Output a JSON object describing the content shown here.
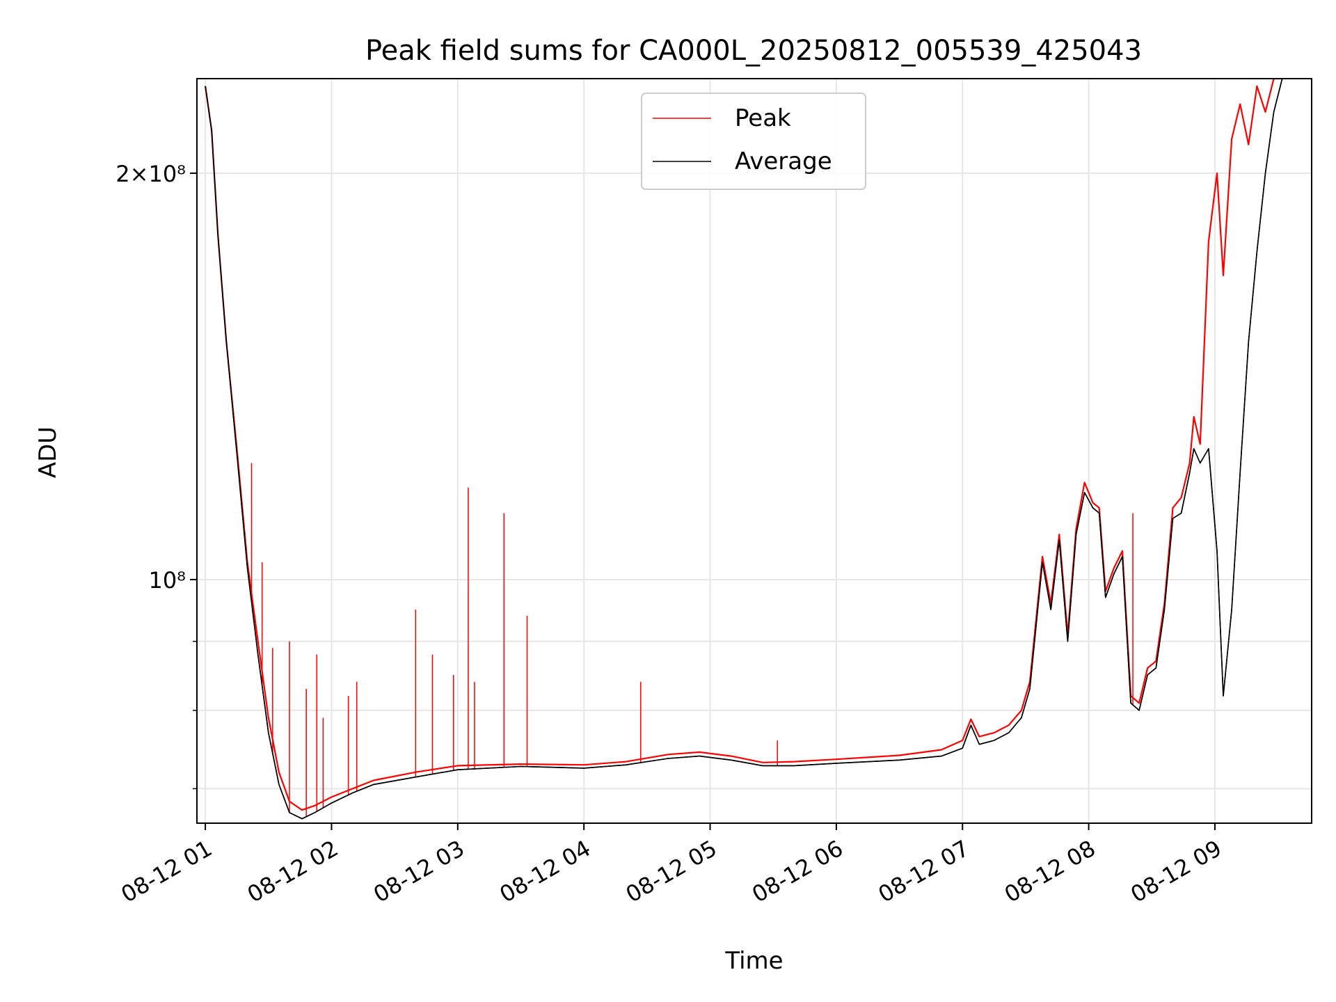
{
  "chart_data": {
    "type": "line",
    "title": "Peak field sums for CA000L_20250812_005539_425043",
    "xlabel": "Time",
    "ylabel": "ADU",
    "y_scale": "log",
    "ylim": [
      66000000,
      235000000
    ],
    "xlim": [
      "2025-08-12 00:56",
      "2025-08-12 09:46"
    ],
    "grid": true,
    "legend_position": "top-center",
    "x_ticks": [
      "08-12 01",
      "08-12 02",
      "08-12 03",
      "08-12 04",
      "08-12 05",
      "08-12 06",
      "08-12 07",
      "08-12 08",
      "08-12 09"
    ],
    "y_ticks": [
      {
        "value": 100000000,
        "label": "10⁸"
      },
      {
        "value": 200000000,
        "label": "2×10⁸"
      }
    ],
    "series": [
      {
        "name": "Peak",
        "color": "#ff0000",
        "spikes": [
          {
            "x": "2025-08-12 01:22",
            "y": 122000000
          },
          {
            "x": "2025-08-12 01:27",
            "y": 103000000
          },
          {
            "x": "2025-08-12 01:32",
            "y": 89000000
          },
          {
            "x": "2025-08-12 01:40",
            "y": 90000000
          },
          {
            "x": "2025-08-12 01:48",
            "y": 83000000
          },
          {
            "x": "2025-08-12 01:53",
            "y": 88000000
          },
          {
            "x": "2025-08-12 01:56",
            "y": 79000000
          },
          {
            "x": "2025-08-12 02:08",
            "y": 82000000
          },
          {
            "x": "2025-08-12 02:12",
            "y": 84000000
          },
          {
            "x": "2025-08-12 02:40",
            "y": 95000000
          },
          {
            "x": "2025-08-12 02:48",
            "y": 88000000
          },
          {
            "x": "2025-08-12 02:58",
            "y": 85000000
          },
          {
            "x": "2025-08-12 03:05",
            "y": 117000000
          },
          {
            "x": "2025-08-12 03:08",
            "y": 84000000
          },
          {
            "x": "2025-08-12 03:22",
            "y": 112000000
          },
          {
            "x": "2025-08-12 03:33",
            "y": 94000000
          },
          {
            "x": "2025-08-12 04:27",
            "y": 84000000
          },
          {
            "x": "2025-08-12 05:32",
            "y": 76000000
          },
          {
            "x": "2025-08-12 08:21",
            "y": 112000000
          }
        ],
        "x": [
          "2025-08-12 01:00",
          "2025-08-12 01:03",
          "2025-08-12 01:06",
          "2025-08-12 01:10",
          "2025-08-12 01:15",
          "2025-08-12 01:20",
          "2025-08-12 01:25",
          "2025-08-12 01:30",
          "2025-08-12 01:35",
          "2025-08-12 01:40",
          "2025-08-12 01:46",
          "2025-08-12 01:52",
          "2025-08-12 02:00",
          "2025-08-12 02:10",
          "2025-08-12 02:20",
          "2025-08-12 02:40",
          "2025-08-12 03:00",
          "2025-08-12 03:30",
          "2025-08-12 04:00",
          "2025-08-12 04:20",
          "2025-08-12 04:40",
          "2025-08-12 04:55",
          "2025-08-12 05:10",
          "2025-08-12 05:25",
          "2025-08-12 05:40",
          "2025-08-12 06:00",
          "2025-08-12 06:30",
          "2025-08-12 06:50",
          "2025-08-12 07:00",
          "2025-08-12 07:04",
          "2025-08-12 07:08",
          "2025-08-12 07:15",
          "2025-08-12 07:22",
          "2025-08-12 07:28",
          "2025-08-12 07:32",
          "2025-08-12 07:38",
          "2025-08-12 07:42",
          "2025-08-12 07:46",
          "2025-08-12 07:50",
          "2025-08-12 07:54",
          "2025-08-12 07:58",
          "2025-08-12 08:02",
          "2025-08-12 08:05",
          "2025-08-12 08:08",
          "2025-08-12 08:12",
          "2025-08-12 08:16",
          "2025-08-12 08:20",
          "2025-08-12 08:24",
          "2025-08-12 08:28",
          "2025-08-12 08:32",
          "2025-08-12 08:36",
          "2025-08-12 08:40",
          "2025-08-12 08:44",
          "2025-08-12 08:48",
          "2025-08-12 08:50",
          "2025-08-12 08:53",
          "2025-08-12 08:57",
          "2025-08-12 09:01",
          "2025-08-12 09:04",
          "2025-08-12 09:08",
          "2025-08-12 09:12",
          "2025-08-12 09:16",
          "2025-08-12 09:20",
          "2025-08-12 09:24",
          "2025-08-12 09:28",
          "2025-08-12 09:32"
        ],
        "values": [
          232000000,
          215000000,
          180000000,
          150000000,
          125000000,
          103000000,
          90000000,
          79000000,
          72000000,
          68500000,
          67500000,
          68000000,
          69000000,
          70000000,
          71000000,
          72000000,
          72800000,
          73000000,
          72900000,
          73300000,
          74200000,
          74500000,
          74000000,
          73200000,
          73300000,
          73600000,
          74100000,
          74800000,
          76000000,
          78800000,
          76500000,
          77000000,
          78000000,
          80000000,
          84000000,
          104000000,
          96000000,
          108000000,
          91000000,
          109000000,
          118000000,
          114000000,
          113000000,
          98000000,
          102000000,
          105000000,
          82000000,
          81000000,
          86000000,
          87000000,
          96000000,
          113000000,
          115000000,
          122000000,
          132000000,
          126000000,
          178000000,
          200000000,
          168000000,
          212000000,
          225000000,
          210000000,
          232000000,
          222000000,
          235000000,
          235000000
        ]
      },
      {
        "name": "Average",
        "color": "#000000",
        "x": [
          "2025-08-12 01:00",
          "2025-08-12 01:03",
          "2025-08-12 01:06",
          "2025-08-12 01:10",
          "2025-08-12 01:15",
          "2025-08-12 01:20",
          "2025-08-12 01:25",
          "2025-08-12 01:30",
          "2025-08-12 01:35",
          "2025-08-12 01:40",
          "2025-08-12 01:46",
          "2025-08-12 01:52",
          "2025-08-12 02:00",
          "2025-08-12 02:10",
          "2025-08-12 02:20",
          "2025-08-12 02:40",
          "2025-08-12 03:00",
          "2025-08-12 03:30",
          "2025-08-12 04:00",
          "2025-08-12 04:20",
          "2025-08-12 04:40",
          "2025-08-12 04:55",
          "2025-08-12 05:10",
          "2025-08-12 05:25",
          "2025-08-12 05:40",
          "2025-08-12 06:00",
          "2025-08-12 06:30",
          "2025-08-12 06:50",
          "2025-08-12 07:00",
          "2025-08-12 07:04",
          "2025-08-12 07:08",
          "2025-08-12 07:15",
          "2025-08-12 07:22",
          "2025-08-12 07:28",
          "2025-08-12 07:32",
          "2025-08-12 07:38",
          "2025-08-12 07:42",
          "2025-08-12 07:46",
          "2025-08-12 07:50",
          "2025-08-12 07:54",
          "2025-08-12 07:58",
          "2025-08-12 08:02",
          "2025-08-12 08:05",
          "2025-08-12 08:08",
          "2025-08-12 08:12",
          "2025-08-12 08:16",
          "2025-08-12 08:20",
          "2025-08-12 08:24",
          "2025-08-12 08:28",
          "2025-08-12 08:32",
          "2025-08-12 08:36",
          "2025-08-12 08:40",
          "2025-08-12 08:44",
          "2025-08-12 08:48",
          "2025-08-12 08:50",
          "2025-08-12 08:53",
          "2025-08-12 08:57",
          "2025-08-12 09:01",
          "2025-08-12 09:04",
          "2025-08-12 09:08",
          "2025-08-12 09:12",
          "2025-08-12 09:16",
          "2025-08-12 09:20",
          "2025-08-12 09:24",
          "2025-08-12 09:28",
          "2025-08-12 09:32"
        ],
        "values": [
          232000000,
          215000000,
          180000000,
          150000000,
          124000000,
          102000000,
          88000000,
          77000000,
          70500000,
          67200000,
          66500000,
          67200000,
          68300000,
          69500000,
          70500000,
          71400000,
          72300000,
          72700000,
          72500000,
          72900000,
          73700000,
          74000000,
          73500000,
          72800000,
          72800000,
          73100000,
          73500000,
          74000000,
          75000000,
          78000000,
          75500000,
          76000000,
          77000000,
          79000000,
          83000000,
          103000000,
          95000000,
          107000000,
          90000000,
          108000000,
          116000000,
          113000000,
          112000000,
          97000000,
          101000000,
          104000000,
          81000000,
          80000000,
          85000000,
          86000000,
          95000000,
          111000000,
          112000000,
          120000000,
          125000000,
          122000000,
          125000000,
          105000000,
          82000000,
          95000000,
          120000000,
          150000000,
          175000000,
          200000000,
          222000000,
          235000000
        ]
      }
    ]
  }
}
